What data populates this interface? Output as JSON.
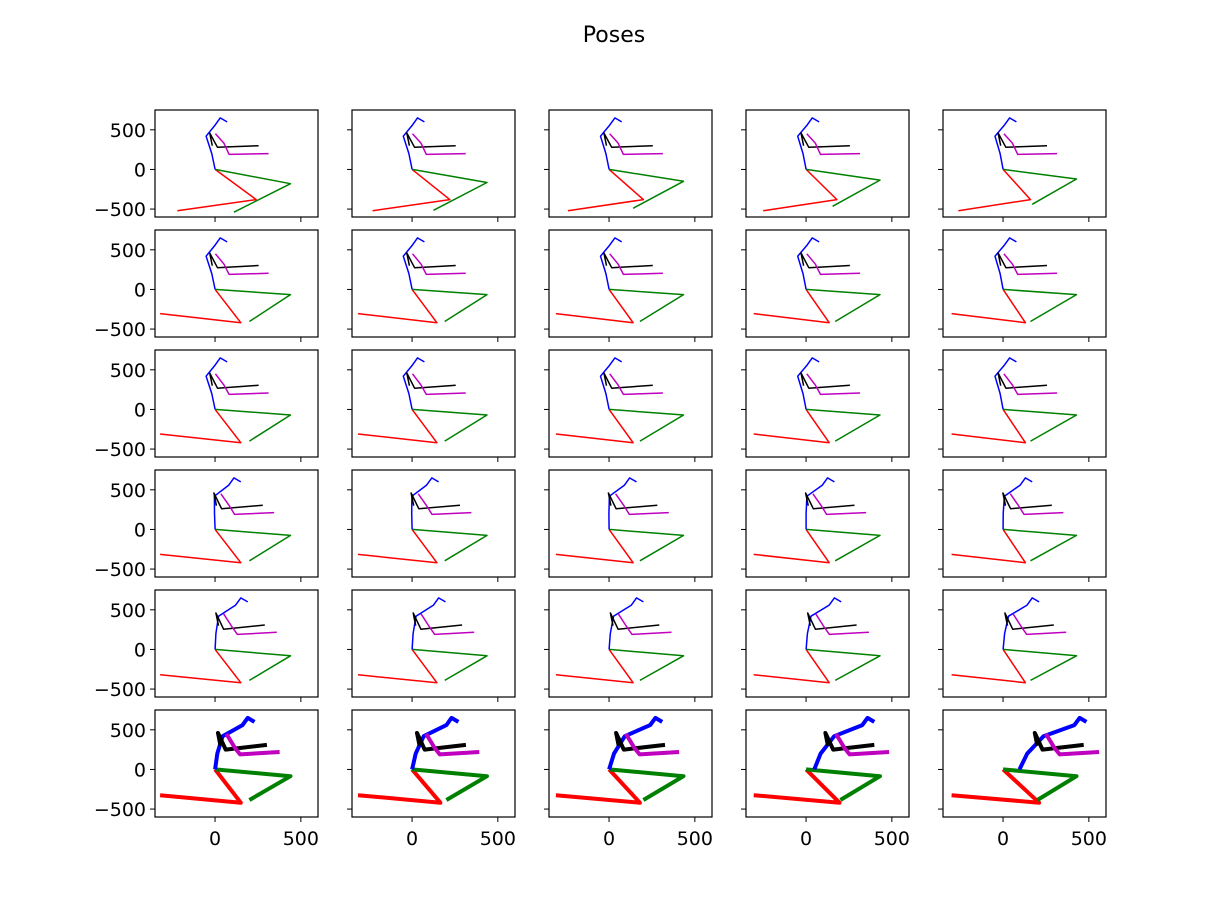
{
  "figure": {
    "title": "Poses",
    "xticks": [
      0,
      500
    ],
    "yticks": [
      500,
      0,
      -500
    ],
    "xlim": [
      -350,
      600
    ],
    "ylim": [
      -600,
      750
    ]
  },
  "chart_data": {
    "type": "line",
    "title": "Poses",
    "rows": 6,
    "cols": 5,
    "xlim": [
      -350,
      600
    ],
    "ylim": [
      -600,
      750
    ],
    "xticks": [
      0,
      500
    ],
    "yticks": [
      -500,
      0,
      500
    ],
    "limb_colors": {
      "red": "#ff0000",
      "green": "#008000",
      "blue": "#0000ff",
      "black": "#000000",
      "magenta": "#bf00bf"
    },
    "thick_last_row": true,
    "poses": [
      {
        "red": [
          [
            -220,
            -540
          ],
          [
            -100,
            -500
          ],
          [
            240,
            -380
          ],
          [
            0,
            0
          ]
        ],
        "green": [
          [
            0,
            0
          ],
          [
            440,
            -180
          ],
          [
            170,
            -440
          ],
          [
            170,
            -440
          ],
          [
            160,
            -460
          ],
          [
            170,
            -440
          ],
          [
            170,
            -440
          ],
          [
            170,
            -440
          ],
          [
            170,
            -440
          ],
          [
            170,
            -440
          ],
          [
            170,
            -440
          ],
          [
            170,
            -440
          ],
          [
            160,
            -450
          ],
          [
            90,
            -550
          ]
        ],
        "blue": [
          [
            0,
            0
          ],
          [
            -20,
            200
          ],
          [
            -30,
            330
          ],
          [
            -10,
            420
          ],
          [
            30,
            550
          ],
          [
            60,
            650
          ],
          [
            100,
            590
          ],
          [
            60,
            650
          ]
        ],
        "black": [
          [
            0,
            0
          ],
          [
            -10,
            450
          ],
          [
            40,
            300
          ],
          [
            300,
            270
          ]
        ],
        "magenta": [
          [
            0,
            0
          ],
          [
            60,
            350
          ],
          [
            90,
            200
          ],
          [
            330,
            190
          ]
        ]
      }
    ]
  }
}
